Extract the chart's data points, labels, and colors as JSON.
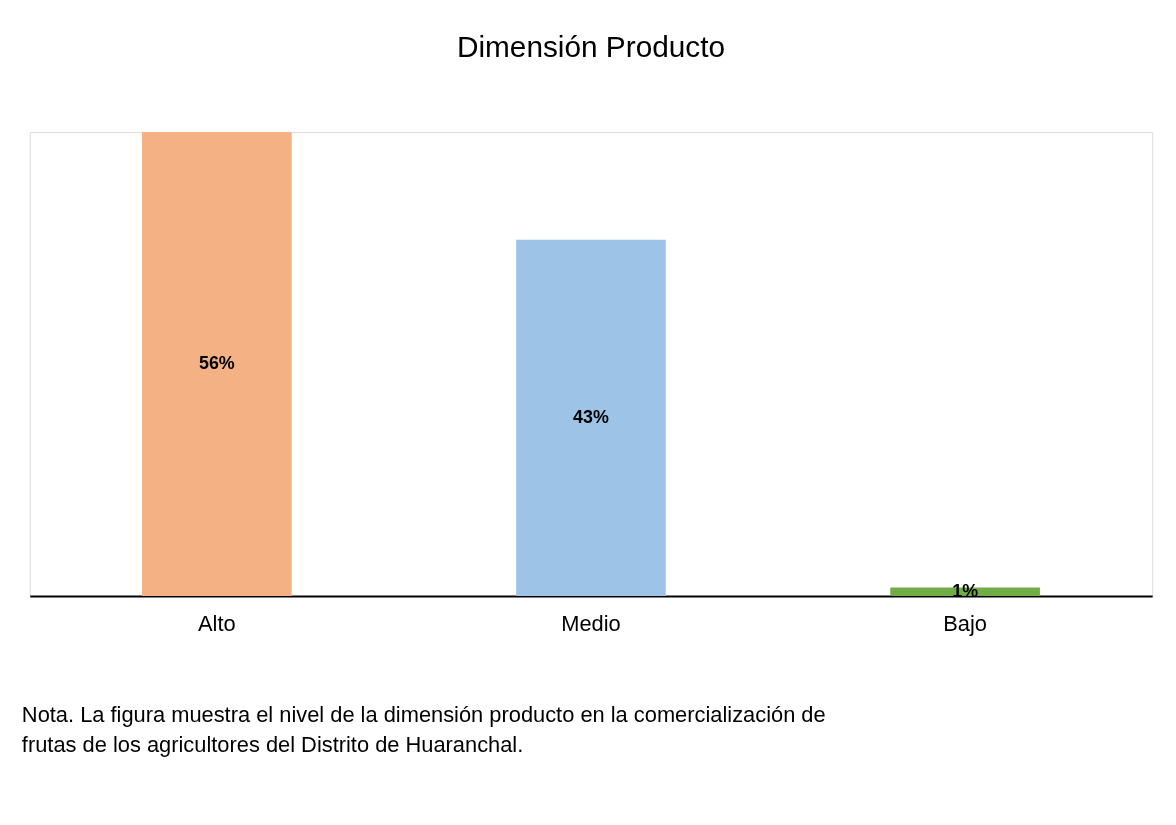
{
  "chart_data": {
    "type": "bar",
    "title": "Dimensión Producto",
    "categories": [
      "Alto",
      "Medio",
      "Bajo"
    ],
    "values": [
      56,
      43,
      1
    ],
    "colors": [
      "#f4b183",
      "#9dc3e6",
      "#70ad47"
    ],
    "data_labels": true,
    "value_labels": [
      "56%",
      "43%",
      "1%"
    ],
    "annotations": [
      "Nota. La figura muestra el nivel de la dimensión producto en la comercialización de frutas de los agricultores del Distrito de Huaranchal."
    ]
  }
}
